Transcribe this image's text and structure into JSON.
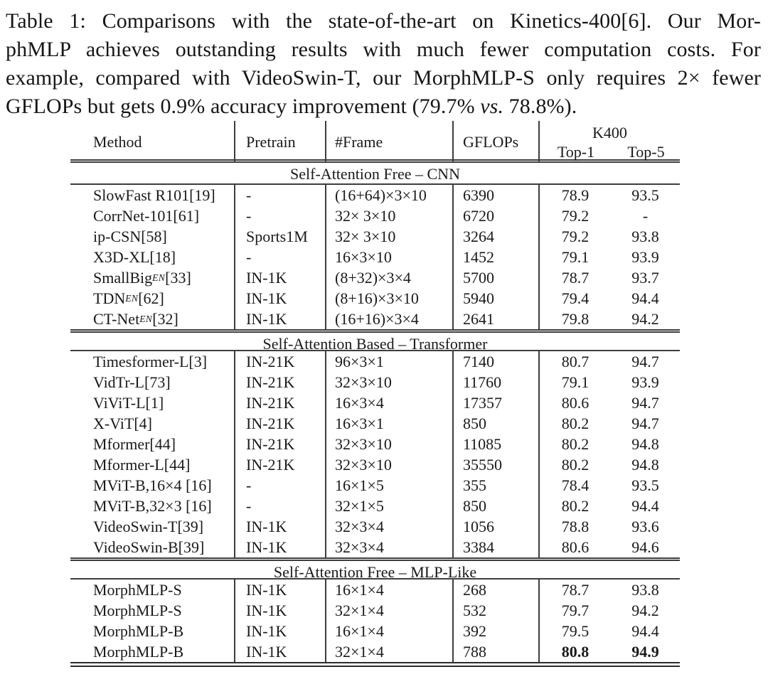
{
  "caption": {
    "lines": [
      "Table 1: Comparisons with the state-of-the-art on Kinetics-400[6]. Our Mor-",
      "phMLP achieves outstanding results with much fewer computation costs. For",
      "example, compared with VideoSwin-T, our MorphMLP-S only requires 2× fewer"
    ],
    "last_line": {
      "before": "GFLOPs but gets 0.9% accuracy improvement (79.7% ",
      "vs": "vs.",
      "after": " 78.8%)."
    }
  },
  "table": {
    "headers": {
      "method": "Method",
      "pretrain": "Pretrain",
      "frame": "#Frame",
      "gflops": "GFLOPs",
      "group": "K400",
      "top1": "Top-1",
      "top5": "Top-5"
    },
    "sections": [
      {
        "title": "Self-Attention Free – CNN",
        "rows": [
          {
            "method": "SlowFast R101[19]",
            "pretrain": "-",
            "frame": "(16+64)×3×10",
            "gflops": "6390",
            "top1": "78.9",
            "top5": "93.5"
          },
          {
            "method": "CorrNet-101[61]",
            "pretrain": "-",
            "frame": "32× 3×10",
            "gflops": "6720",
            "top1": "79.2",
            "top5": "-"
          },
          {
            "method": "ip-CSN[58]",
            "pretrain": "Sports1M",
            "frame": "32× 3×10",
            "gflops": "3264",
            "top1": "79.2",
            "top5": "93.8"
          },
          {
            "method": "X3D-XL[18]",
            "pretrain": "-",
            "frame": "16×3×10",
            "gflops": "1452",
            "top1": "79.1",
            "top5": "93.9"
          },
          {
            "method": "SmallBig",
            "sub": "EN",
            "ref": "[33]",
            "pretrain": "IN-1K",
            "frame": "(8+32)×3×4",
            "gflops": "5700",
            "top1": "78.7",
            "top5": "93.7"
          },
          {
            "method": "TDN",
            "sub": "EN",
            "ref": "[62]",
            "pretrain": "IN-1K",
            "frame": "(8+16)×3×10",
            "gflops": "5940",
            "top1": "79.4",
            "top5": "94.4"
          },
          {
            "method": "CT-Net",
            "sub": "EN",
            "ref": "[32]",
            "pretrain": "IN-1K",
            "frame": "(16+16)×3×4",
            "gflops": "2641",
            "top1": "79.8",
            "top5": "94.2"
          }
        ]
      },
      {
        "title": "Self-Attention Based – Transformer",
        "rows": [
          {
            "method": "Timesformer-L[3]",
            "pretrain": "IN-21K",
            "frame": "96×3×1",
            "gflops": "7140",
            "top1": "80.7",
            "top5": "94.7"
          },
          {
            "method": "VidTr-L[73]",
            "pretrain": "IN-21K",
            "frame": "32×3×10",
            "gflops": "11760",
            "top1": "79.1",
            "top5": "93.9"
          },
          {
            "method": "ViViT-L[1]",
            "pretrain": "IN-21K",
            "frame": "16×3×4",
            "gflops": "17357",
            "top1": "80.6",
            "top5": "94.7"
          },
          {
            "method": "X-ViT[4]",
            "pretrain": "IN-21K",
            "frame": "16×3×1",
            "gflops": "850",
            "top1": "80.2",
            "top5": "94.7"
          },
          {
            "method": "Mformer[44]",
            "pretrain": "IN-21K",
            "frame": "32×3×10",
            "gflops": "11085",
            "top1": "80.2",
            "top5": "94.8"
          },
          {
            "method": "Mformer-L[44]",
            "pretrain": "IN-21K",
            "frame": "32×3×10",
            "gflops": "35550",
            "top1": "80.2",
            "top5": "94.8"
          },
          {
            "method": "MViT-B,16×4 [16]",
            "pretrain": "-",
            "frame": "16×1×5",
            "gflops": "355",
            "top1": "78.4",
            "top5": "93.5"
          },
          {
            "method": "MViT-B,32×3 [16]",
            "pretrain": "-",
            "frame": "32×1×5",
            "gflops": "850",
            "top1": "80.2",
            "top5": "94.4"
          },
          {
            "method": "VideoSwin-T[39]",
            "pretrain": "IN-1K",
            "frame": "32×3×4",
            "gflops": "1056",
            "top1": "78.8",
            "top5": "93.6"
          },
          {
            "method": "VideoSwin-B[39]",
            "pretrain": "IN-1K",
            "frame": "32×3×4",
            "gflops": "3384",
            "top1": "80.6",
            "top5": "94.6"
          }
        ]
      },
      {
        "title": "Self-Attention Free – MLP-Like",
        "rows": [
          {
            "method": "MorphMLP-S",
            "pretrain": "IN-1K",
            "frame": "16×1×4",
            "gflops": "268",
            "top1": "78.7",
            "top5": "93.8"
          },
          {
            "method": "MorphMLP-S",
            "pretrain": "IN-1K",
            "frame": "32×1×4",
            "gflops": "532",
            "top1": "79.7",
            "top5": "94.2"
          },
          {
            "method": "MorphMLP-B",
            "pretrain": "IN-1K",
            "frame": "16×1×4",
            "gflops": "392",
            "top1": "79.5",
            "top5": "94.4"
          },
          {
            "method": "MorphMLP-B",
            "pretrain": "IN-1K",
            "frame": "32×1×4",
            "gflops": "788",
            "top1": "80.8",
            "top5": "94.9",
            "bold": true
          }
        ]
      }
    ]
  },
  "colors": {
    "text": "#1a1a1a",
    "rule": "#3d3d3d",
    "background": "#ffffff"
  }
}
